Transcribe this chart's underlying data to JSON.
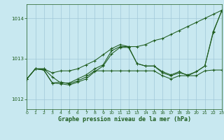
{
  "title": "Graphe pression niveau de la mer (hPa)",
  "background_color": "#c8e8f0",
  "grid_color": "#a0c8d8",
  "line_color": "#1e5c1e",
  "x_min": 0,
  "x_max": 23,
  "y_min": 1011.75,
  "y_max": 1014.35,
  "yticks": [
    1012,
    1013,
    1014
  ],
  "xticks": [
    0,
    1,
    2,
    3,
    4,
    5,
    6,
    7,
    8,
    9,
    10,
    11,
    12,
    13,
    14,
    15,
    16,
    17,
    18,
    19,
    20,
    21,
    22,
    23
  ],
  "series": [
    [
      1012.5,
      1012.75,
      1012.75,
      1012.65,
      1012.7,
      1012.7,
      1012.75,
      1012.85,
      1012.95,
      1013.1,
      1013.25,
      1013.35,
      1013.3,
      1013.3,
      1013.35,
      1013.45,
      1013.5,
      1013.6,
      1013.7,
      1013.8,
      1013.9,
      1014.0,
      1014.1,
      1014.2
    ],
    [
      1012.5,
      1012.75,
      1012.75,
      1012.55,
      1012.4,
      1012.4,
      1012.5,
      1012.6,
      1012.75,
      1012.85,
      1013.2,
      1013.3,
      1013.3,
      1012.88,
      1012.82,
      1012.82,
      1012.65,
      1012.58,
      1012.65,
      1012.6,
      1012.68,
      1012.82,
      1013.65,
      1014.2
    ],
    [
      1012.5,
      1012.75,
      1012.72,
      1012.4,
      1012.42,
      1012.38,
      1012.45,
      1012.55,
      1012.7,
      1012.7,
      1012.7,
      1012.7,
      1012.7,
      1012.7,
      1012.7,
      1012.7,
      1012.58,
      1012.5,
      1012.58,
      1012.58,
      1012.58,
      1012.7,
      1012.72,
      1012.72
    ],
    [
      1012.5,
      1012.75,
      1012.72,
      1012.4,
      1012.38,
      1012.35,
      1012.42,
      1012.5,
      1012.68,
      1012.82,
      1013.12,
      1013.28,
      1013.28,
      1012.88,
      1012.82,
      1012.82,
      1012.68,
      1012.6,
      1012.68,
      1012.58,
      1012.68,
      1012.82,
      1013.68,
      1014.18
    ]
  ]
}
